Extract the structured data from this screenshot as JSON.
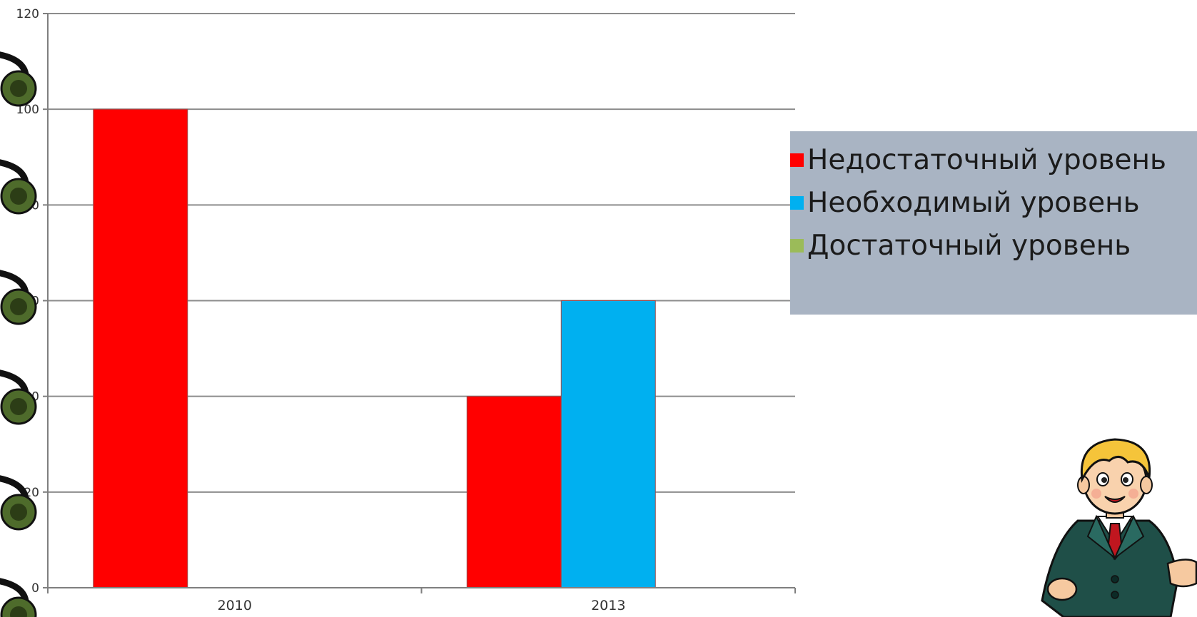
{
  "chart_data": {
    "type": "bar",
    "categories": [
      "2010",
      "2013"
    ],
    "series": [
      {
        "name": "Недостаточный уровень",
        "values": [
          100,
          40
        ],
        "color": "#ff0000"
      },
      {
        "name": "Необходимый уровень",
        "values": [
          0,
          60
        ],
        "color": "#00b0f0"
      },
      {
        "name": "Достаточный уровень",
        "values": [
          0,
          0
        ],
        "color": "#9bbb59"
      }
    ],
    "ylim": [
      0,
      120
    ],
    "yticks": [
      "0",
      "20",
      "40",
      "60",
      "80",
      "100",
      "120"
    ],
    "grid": true,
    "legend_position": "right"
  },
  "decorations": {
    "binding_rings": "ring-binder-icon",
    "character": "boy-in-suit-icon"
  }
}
